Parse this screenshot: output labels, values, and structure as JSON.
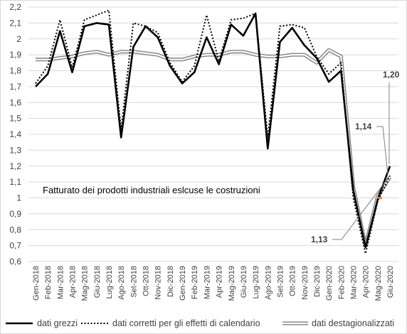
{
  "chart_data": {
    "type": "line",
    "title": "Fatturato dei prodotti  industriali eslcuse le costruzioni",
    "xlabel": "",
    "ylabel": "",
    "ylim": [
      0.6,
      2.2
    ],
    "ytick_step": 0.1,
    "yticks": [
      "0,6",
      "0,7",
      "0,8",
      "0,9",
      "1",
      "1,1",
      "1,2",
      "1,3",
      "1,4",
      "1,5",
      "1,6",
      "1,7",
      "1,8",
      "1,9",
      "2",
      "2,1",
      "2,2"
    ],
    "grid": "horizontal",
    "legend_position": "bottom",
    "x": [
      "Gen-2018",
      "Feb-2018",
      "Mar-2018",
      "Apr-2018",
      "Mag-2018",
      "Giu-2018",
      "Lug-2018",
      "Ago-2018",
      "Set-2018",
      "Ott-2018",
      "Nov-2018",
      "Dic-2018",
      "Gen-2019",
      "Feb-2019",
      "Mar-2019",
      "Apr-2019",
      "Mag-2019",
      "Giu-2019",
      "Lug-2019",
      "Ago-2019",
      "Set-2019",
      "Ott-2019",
      "Nov-2019",
      "Dic-2019",
      "Gen-2020",
      "Feb-2020",
      "Mar-2020",
      "Apr-2020",
      "Mag-2020",
      "Giu-2020"
    ],
    "series": [
      {
        "name": "dati grezzi",
        "style": "solid-thick",
        "color": "#000000",
        "values": [
          1.7,
          1.78,
          2.05,
          1.79,
          2.08,
          2.1,
          2.09,
          1.38,
          1.95,
          2.08,
          2.01,
          1.83,
          1.72,
          1.79,
          2.01,
          1.84,
          2.09,
          2.02,
          2.16,
          1.31,
          1.98,
          2.07,
          1.96,
          1.88,
          1.73,
          1.8,
          1.05,
          0.69,
          0.99,
          1.2
        ]
      },
      {
        "name": "dati corretti per gli effetti di calendario",
        "style": "dotted",
        "color": "#000000",
        "values": [
          1.72,
          1.83,
          2.12,
          1.82,
          2.12,
          2.15,
          2.18,
          1.43,
          2.1,
          2.08,
          2.04,
          1.85,
          1.73,
          1.83,
          2.15,
          1.86,
          2.12,
          2.13,
          2.16,
          1.38,
          2.08,
          2.09,
          2.07,
          1.89,
          1.78,
          1.85,
          1.0,
          0.65,
          0.98,
          1.14
        ]
      },
      {
        "name": "dati destagionalizzati",
        "style": "double-gray",
        "color": "#808080",
        "values": [
          1.87,
          1.87,
          1.88,
          1.89,
          1.91,
          1.92,
          1.9,
          1.92,
          1.92,
          1.91,
          1.9,
          1.87,
          1.87,
          1.89,
          1.9,
          1.9,
          1.92,
          1.92,
          1.9,
          1.89,
          1.89,
          1.9,
          1.9,
          1.85,
          1.93,
          1.89,
          1.07,
          0.7,
          1.01,
          1.13
        ]
      }
    ],
    "annotations": [
      {
        "text": "1,20",
        "series": 0,
        "index": 29
      },
      {
        "text": "1,14",
        "series": 1,
        "index": 29
      },
      {
        "text": "1,13",
        "series": 2,
        "index": 29
      }
    ],
    "highlight_color": "#ed7d31"
  }
}
